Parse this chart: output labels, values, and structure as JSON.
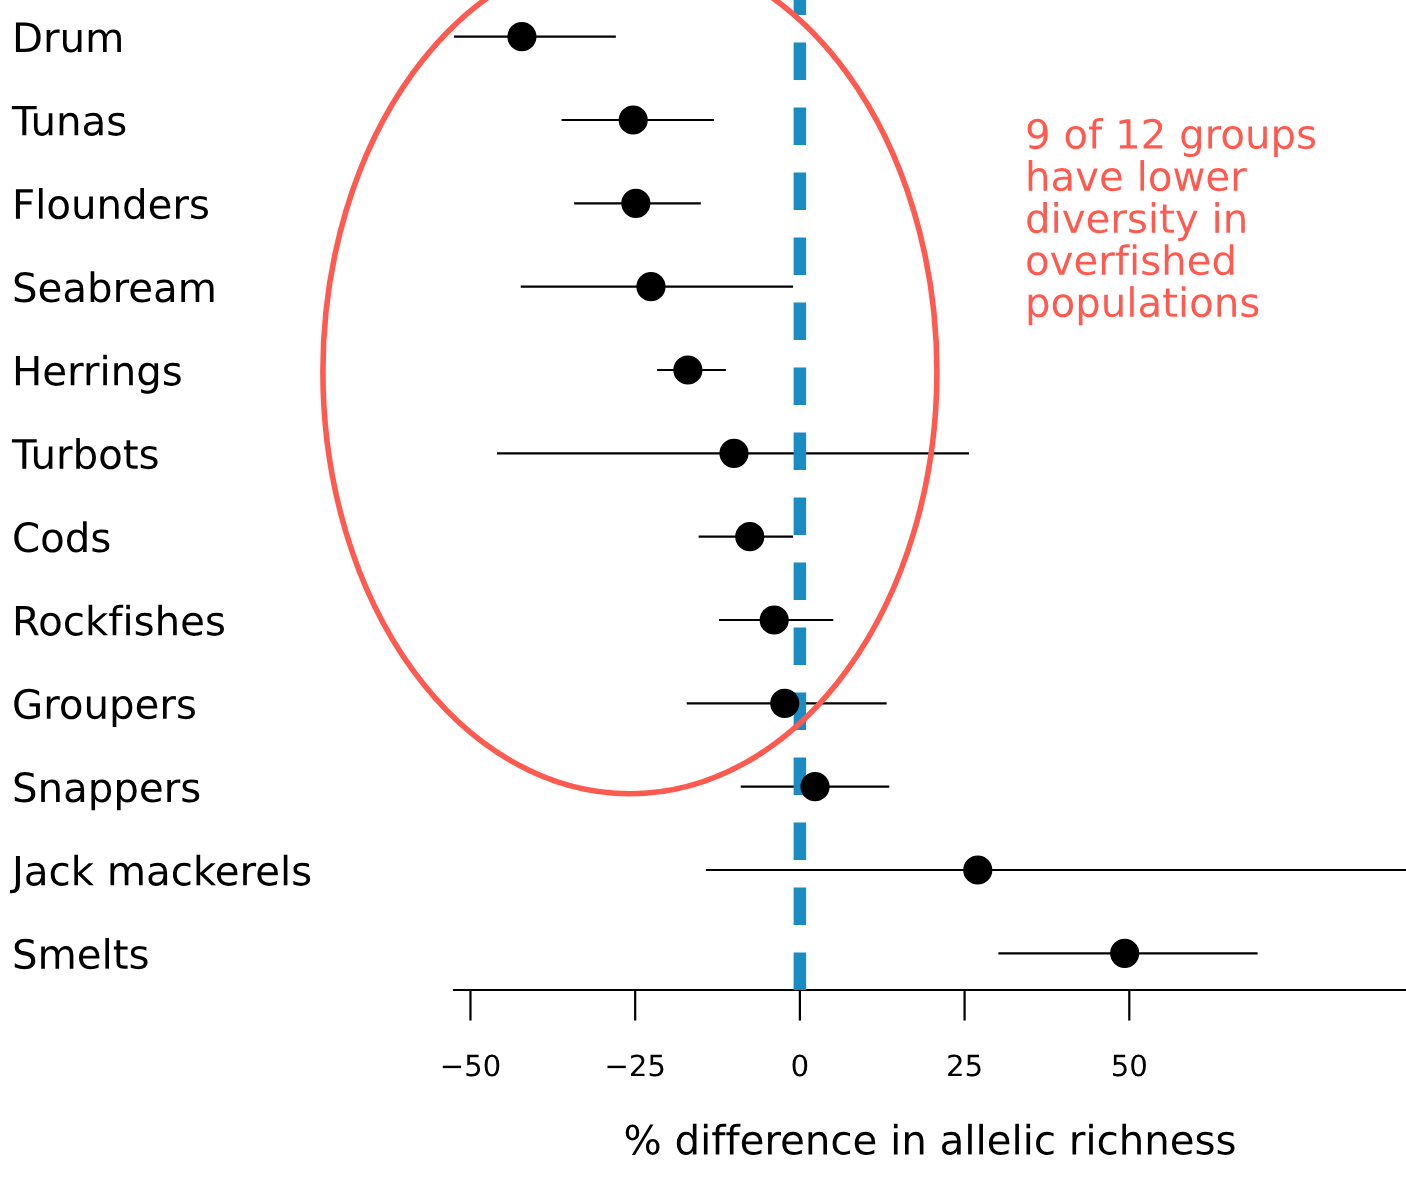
{
  "chart_data": {
    "type": "scatter",
    "orientation": "horizontal",
    "xlabel": "% difference in allelic richness",
    "categories": [
      "Drum",
      "Tunas",
      "Flounders",
      "Seabream",
      "Herrings",
      "Turbots",
      "Cods",
      "Rockfishes",
      "Groupers",
      "Snappers",
      "Jack mackerels",
      "Smelts"
    ],
    "values": [
      -42.2,
      -25.3,
      -24.9,
      -22.6,
      -17.0,
      -10.0,
      -7.6,
      -3.9,
      -2.3,
      2.3,
      27.0,
      49.3
    ],
    "errors": [
      [
        -52.4,
        -28.1
      ],
      [
        -36.0,
        -13.2
      ],
      [
        -34.1,
        -15.2
      ],
      [
        -42.2,
        -1.2
      ],
      [
        -21.5,
        -11.4
      ],
      [
        -45.8,
        25.5
      ],
      [
        -15.2,
        -1.2
      ],
      [
        -12.1,
        4.9
      ],
      [
        -17.0,
        13.0
      ],
      [
        -8.8,
        13.4
      ],
      [
        -14.1,
        92
      ],
      [
        30.3,
        69.3
      ]
    ],
    "color": "#000000",
    "marker": "circle",
    "xlim": [
      -52.5,
      92
    ],
    "xticks": [
      {
        "value": -50,
        "label": "−50"
      },
      {
        "value": -25,
        "label": "−25"
      },
      0,
      25,
      50
    ],
    "ref_lines": [
      {
        "axis": "x",
        "value": 0,
        "color": "#1a8cc1",
        "line_style": "dashed"
      }
    ],
    "annotations": [
      "9 of 12 groups\nhave lower\ndiversity in\noverfished\npopulations"
    ]
  }
}
